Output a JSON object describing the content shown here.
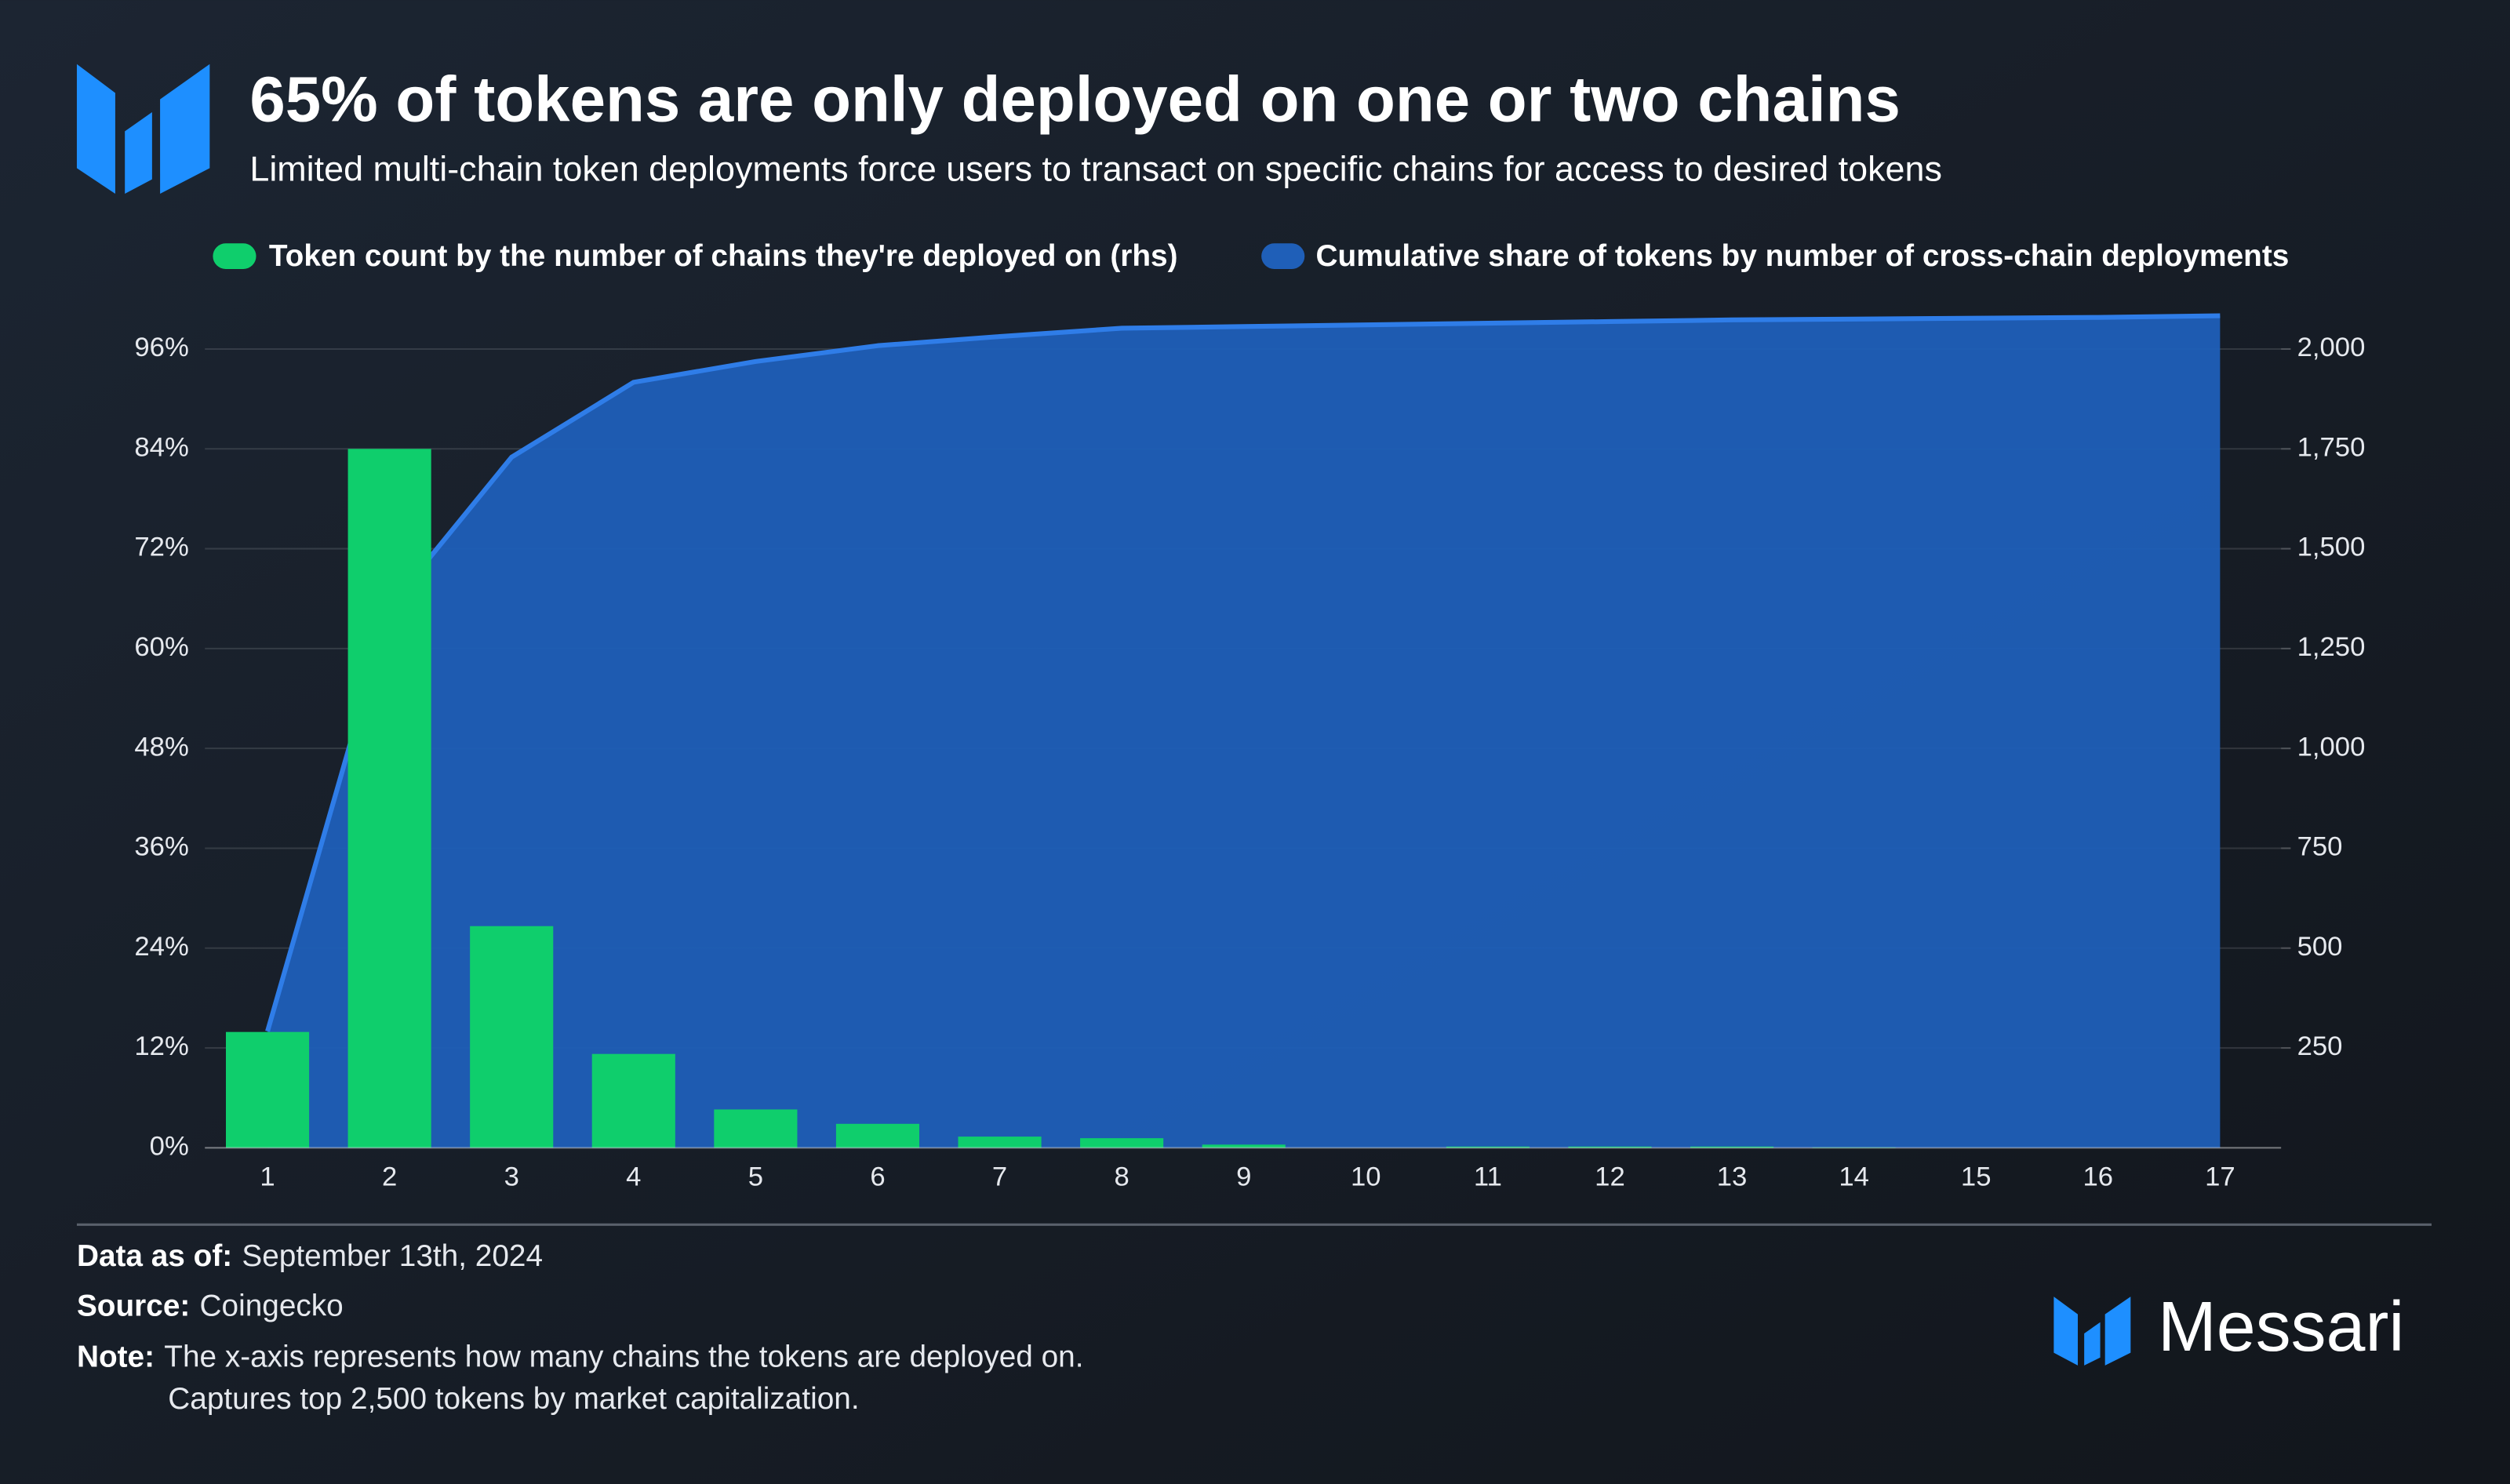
{
  "header": {
    "title": "65% of tokens are only deployed on one or two chains",
    "subtitle": "Limited multi-chain token deployments force users to transact on specific chains for access to desired tokens"
  },
  "chart_data": {
    "type": "combo",
    "categories": [
      "1",
      "2",
      "3",
      "4",
      "5",
      "6",
      "7",
      "8",
      "9",
      "10",
      "11",
      "12",
      "13",
      "14",
      "15",
      "16",
      "17"
    ],
    "series": [
      {
        "name": "Token count by the number of chains they're deployed on (rhs)",
        "type": "bar",
        "axis": "y2",
        "color": "#0fce6c",
        "values": [
          290,
          1750,
          555,
          235,
          96,
          60,
          28,
          24,
          8,
          0,
          3,
          3,
          3,
          1,
          0,
          0,
          0
        ]
      },
      {
        "name": "Cumulative share of tokens by number of cross-chain deployments",
        "type": "area",
        "color": "#2f7de8",
        "values": [
          14,
          65,
          83,
          92,
          94.5,
          96.4,
          97.5,
          98.5,
          98.7,
          98.9,
          99.1,
          99.3,
          99.5,
          99.6,
          99.7,
          99.8,
          100
        ]
      }
    ],
    "ylim": [
      0,
      96
    ],
    "yticks": [
      {
        "value": 0,
        "label": "0%"
      },
      {
        "value": 12,
        "label": "12%"
      },
      {
        "value": 24,
        "label": "24%"
      },
      {
        "value": 36,
        "label": "36%"
      },
      {
        "value": 48,
        "label": "48%"
      },
      {
        "value": 60,
        "label": "60%"
      },
      {
        "value": 72,
        "label": "72%"
      },
      {
        "value": 84,
        "label": "84%"
      },
      {
        "value": 96,
        "label": "96%"
      }
    ],
    "y2lim": [
      0,
      2000
    ],
    "y2ticks": [
      250,
      500,
      750,
      {
        "value": 1000,
        "label": "1,000"
      },
      {
        "value": 1250,
        "label": "1,250"
      },
      {
        "value": 1500,
        "label": "1,500"
      },
      {
        "value": 1750,
        "label": "1,750"
      },
      {
        "value": 2000,
        "label": "2,000"
      }
    ],
    "grid": true
  },
  "footer": {
    "data_as_of_label": "Data as of:",
    "data_as_of": "September 13th, 2024",
    "source_label": "Source:",
    "source": "Coingecko",
    "note_label": "Note:",
    "note_lines": [
      "The x-axis represents how many chains the tokens are deployed on.",
      "Captures top 2,500 tokens by market capitalization."
    ]
  },
  "brand": "Messari"
}
